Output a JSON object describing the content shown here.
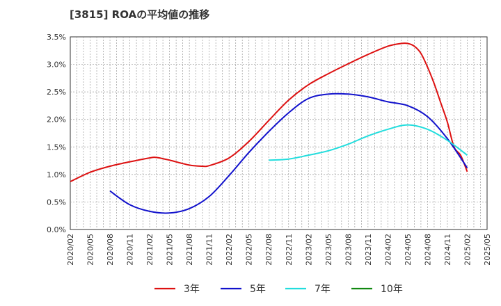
{
  "chart_data": {
    "type": "line",
    "title": "[3815]  ROAの平均値の推移",
    "xlabel": "",
    "ylabel": "",
    "ylim": [
      0,
      3.5
    ],
    "y_ticks": [
      "0.0%",
      "0.5%",
      "1.0%",
      "1.5%",
      "2.0%",
      "2.5%",
      "3.0%",
      "3.5%"
    ],
    "x_ticks": [
      "2020/02",
      "2020/05",
      "2020/08",
      "2020/11",
      "2021/02",
      "2021/05",
      "2021/08",
      "2021/11",
      "2022/02",
      "2022/05",
      "2022/08",
      "2022/11",
      "2023/02",
      "2023/05",
      "2023/08",
      "2023/11",
      "2024/02",
      "2024/05",
      "2024/08",
      "2024/11",
      "2025/02",
      "2025/05"
    ],
    "grid": true,
    "legend_position": "bottom",
    "series": [
      {
        "name": "3年",
        "color": "#dd1111",
        "points": [
          [
            "2020/02",
            0.87
          ],
          [
            "2020/05",
            1.04
          ],
          [
            "2020/08",
            1.15
          ],
          [
            "2020/11",
            1.23
          ],
          [
            "2021/02",
            1.3
          ],
          [
            "2021/03",
            1.31
          ],
          [
            "2021/05",
            1.26
          ],
          [
            "2021/08",
            1.17
          ],
          [
            "2021/10",
            1.15
          ],
          [
            "2021/11",
            1.16
          ],
          [
            "2022/02",
            1.3
          ],
          [
            "2022/05",
            1.6
          ],
          [
            "2022/08",
            1.98
          ],
          [
            "2022/11",
            2.35
          ],
          [
            "2023/02",
            2.63
          ],
          [
            "2023/05",
            2.83
          ],
          [
            "2023/08",
            3.01
          ],
          [
            "2023/11",
            3.18
          ],
          [
            "2024/02",
            3.33
          ],
          [
            "2024/04",
            3.38
          ],
          [
            "2024/05",
            3.38
          ],
          [
            "2024/06",
            3.33
          ],
          [
            "2024/07",
            3.2
          ],
          [
            "2024/08",
            2.95
          ],
          [
            "2024/09",
            2.65
          ],
          [
            "2024/10",
            2.3
          ],
          [
            "2024/11",
            1.95
          ],
          [
            "2024/12",
            1.5
          ],
          [
            "2025/01",
            1.35
          ],
          [
            "2025/02",
            1.05
          ]
        ]
      },
      {
        "name": "5年",
        "color": "#1111cc",
        "points": [
          [
            "2020/08",
            0.7
          ],
          [
            "2020/11",
            0.45
          ],
          [
            "2021/02",
            0.33
          ],
          [
            "2021/05",
            0.3
          ],
          [
            "2021/08",
            0.38
          ],
          [
            "2021/11",
            0.6
          ],
          [
            "2022/02",
            0.98
          ],
          [
            "2022/05",
            1.4
          ],
          [
            "2022/08",
            1.78
          ],
          [
            "2022/11",
            2.12
          ],
          [
            "2023/02",
            2.38
          ],
          [
            "2023/05",
            2.46
          ],
          [
            "2023/08",
            2.46
          ],
          [
            "2023/11",
            2.41
          ],
          [
            "2024/02",
            2.32
          ],
          [
            "2024/05",
            2.25
          ],
          [
            "2024/08",
            2.05
          ],
          [
            "2024/11",
            1.65
          ],
          [
            "2025/02",
            1.12
          ]
        ]
      },
      {
        "name": "7年",
        "color": "#22dddd",
        "points": [
          [
            "2022/08",
            1.26
          ],
          [
            "2022/11",
            1.28
          ],
          [
            "2023/02",
            1.35
          ],
          [
            "2023/05",
            1.43
          ],
          [
            "2023/08",
            1.55
          ],
          [
            "2023/11",
            1.7
          ],
          [
            "2024/02",
            1.82
          ],
          [
            "2024/05",
            1.9
          ],
          [
            "2024/08",
            1.82
          ],
          [
            "2024/11",
            1.62
          ],
          [
            "2025/02",
            1.35
          ]
        ]
      },
      {
        "name": "10年",
        "color": "#118811",
        "points": []
      }
    ]
  }
}
